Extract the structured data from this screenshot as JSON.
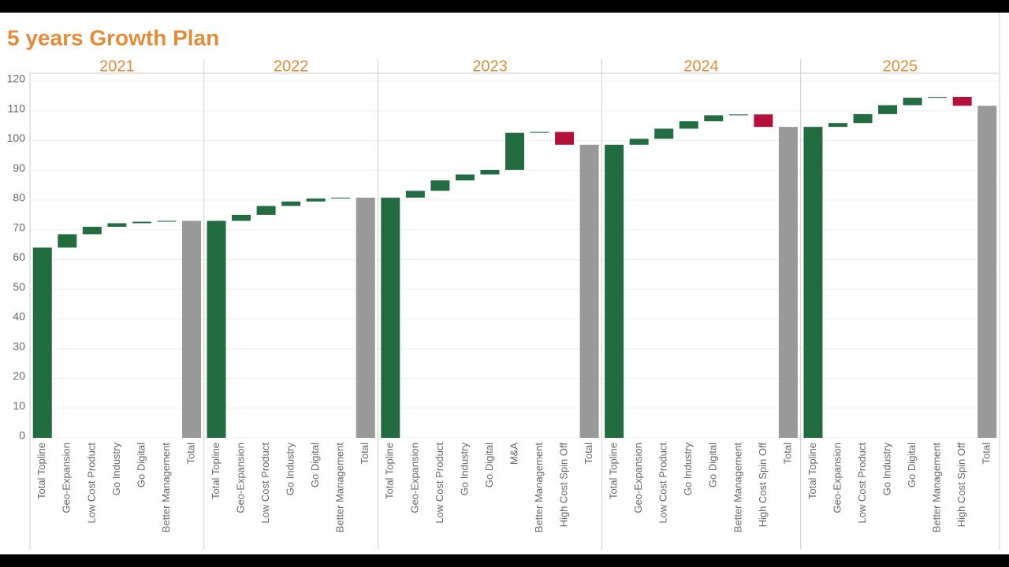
{
  "chart_data": {
    "type": "waterfall",
    "title": "5 years Growth Plan",
    "ylim": [
      0,
      120
    ],
    "yticks": [
      0,
      10,
      20,
      30,
      40,
      50,
      60,
      70,
      80,
      90,
      100,
      110,
      120
    ],
    "grid": true,
    "colors": {
      "increase": "#236b40",
      "decrease": "#b5103c",
      "absolute": "#236b40",
      "total": "#999999"
    },
    "panels": [
      {
        "label": "2021",
        "categories": [
          "Total Topline",
          "Geo-Expansion",
          "Low Cost Product",
          "Go Industry",
          "Go Digital",
          "Better Management",
          "Total"
        ],
        "measures": [
          "absolute",
          "relative",
          "relative",
          "relative",
          "relative",
          "relative",
          "total"
        ],
        "values": [
          64,
          4.5,
          2.5,
          1.2,
          0.5,
          0.3,
          73
        ]
      },
      {
        "label": "2022",
        "categories": [
          "Total Topline",
          "Geo-Expansion",
          "Low Cost Product",
          "Go Industry",
          "Go Digital",
          "Better Management",
          "Total"
        ],
        "measures": [
          "absolute",
          "relative",
          "relative",
          "relative",
          "relative",
          "relative",
          "total"
        ],
        "values": [
          73,
          2,
          3,
          1.5,
          1,
          0.3,
          80.8
        ]
      },
      {
        "label": "2023",
        "categories": [
          "Total Topline",
          "Geo-Expansion",
          "Low Cost Product",
          "Go Industry",
          "Go Digital",
          "M&A",
          "Better Management",
          "High Cost Spin Off",
          "Total"
        ],
        "measures": [
          "absolute",
          "relative",
          "relative",
          "relative",
          "relative",
          "relative",
          "relative",
          "relative",
          "total"
        ],
        "values": [
          80.8,
          2.3,
          3.5,
          2,
          1.5,
          12.5,
          0.3,
          -4.3,
          98.6
        ]
      },
      {
        "label": "2024",
        "categories": [
          "Total Topline",
          "Geo-Expansion",
          "Low Cost Product",
          "Go Industry",
          "Go Digital",
          "Better Management",
          "High Cost Spin Off",
          "Total"
        ],
        "measures": [
          "absolute",
          "relative",
          "relative",
          "relative",
          "relative",
          "relative",
          "relative",
          "total"
        ],
        "values": [
          98.6,
          2,
          3.4,
          2.5,
          2,
          0.3,
          -4.2,
          104.6
        ]
      },
      {
        "label": "2025",
        "categories": [
          "Total Topline",
          "Geo-Expansion",
          "Low Cost Product",
          "Go Industry",
          "Go Digital",
          "Better Management",
          "High Cost Spin Off",
          "Total"
        ],
        "measures": [
          "absolute",
          "relative",
          "relative",
          "relative",
          "relative",
          "relative",
          "relative",
          "total"
        ],
        "values": [
          104.6,
          1.3,
          3,
          3,
          2.5,
          0.3,
          -3,
          111.7
        ]
      }
    ]
  }
}
